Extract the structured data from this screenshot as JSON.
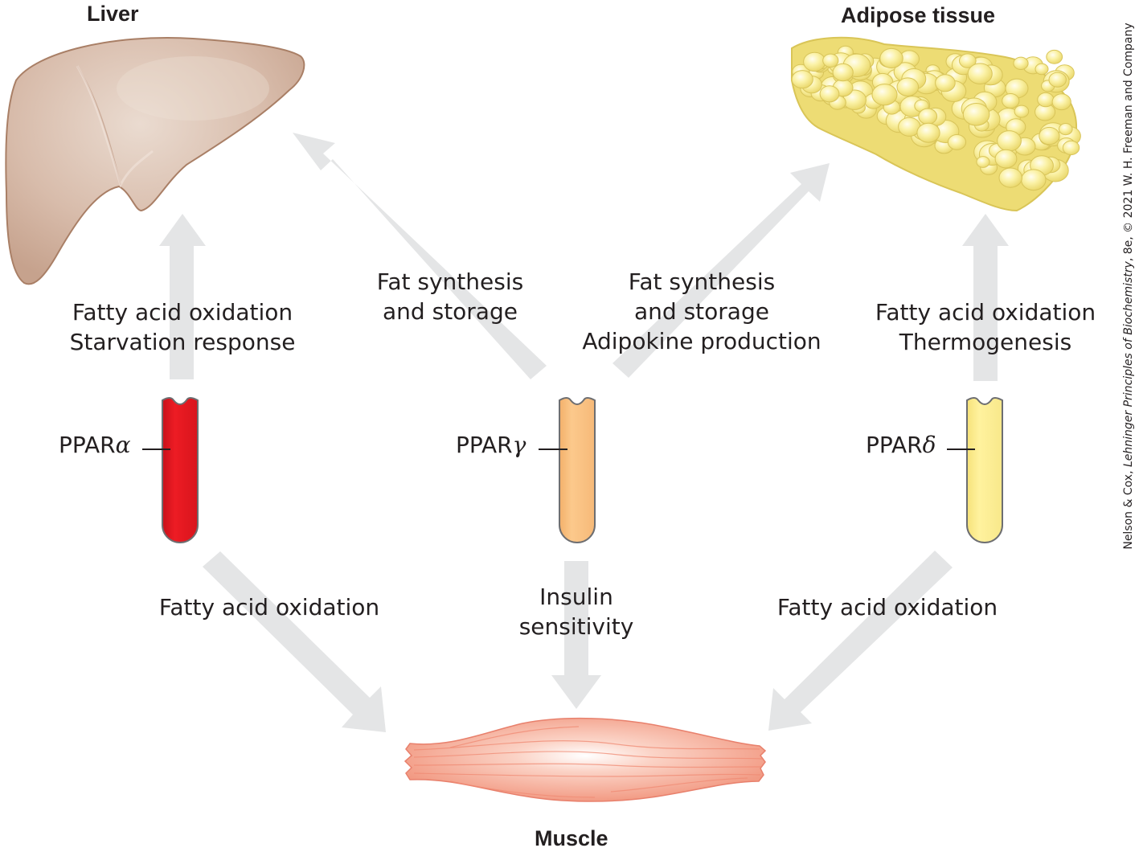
{
  "organs": {
    "liver": "Liver",
    "adipose": "Adipose tissue",
    "muscle": "Muscle"
  },
  "receptors": {
    "alpha": {
      "prefix": "PPAR",
      "symbol": "α",
      "color": "#ed1c24"
    },
    "gamma": {
      "prefix": "PPAR",
      "symbol": "γ",
      "color": "#fbc585"
    },
    "delta": {
      "prefix": "PPAR",
      "symbol": "δ",
      "color": "#fff09a"
    }
  },
  "effects": {
    "alpha_liver": [
      "Fatty acid oxidation",
      "Starvation response"
    ],
    "gamma_liver": [
      "Fat synthesis",
      "and storage"
    ],
    "gamma_adipose": [
      "Fat synthesis",
      "and storage",
      "Adipokine production"
    ],
    "delta_adipose": [
      "Fatty acid oxidation",
      "Thermogenesis"
    ],
    "alpha_muscle": "Fatty acid oxidation",
    "gamma_muscle": [
      "Insulin",
      "sensitivity"
    ],
    "delta_muscle": "Fatty acid oxidation"
  },
  "credit": {
    "before": "Nelson & Cox, ",
    "book": "Lehninger Principles of Biochemistry",
    "after": ", 8e, © 2021 W. H. Freeman and Company"
  },
  "colors": {
    "arrow": "#e4e5e6",
    "liver": "#d4b6a4",
    "adipose": "#f3e27a",
    "muscle": "#f39a86"
  }
}
